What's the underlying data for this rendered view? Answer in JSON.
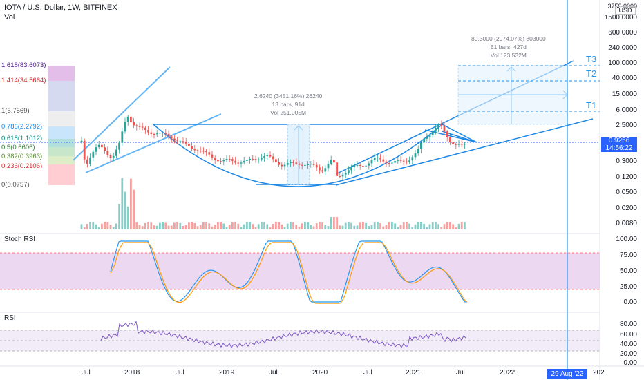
{
  "header": {
    "symbol_line": "IOTA / U.S. Dollar, 1W, BITFINEX",
    "vol_label": "Vol"
  },
  "price_axis": {
    "currency": "USD",
    "ticks": [
      "3750.0000",
      "1500.0000",
      "600.0000",
      "240.0000",
      "100.0000",
      "40.0000",
      "15.0000",
      "6.0000",
      "2.5000",
      "0.9256",
      "0.3000",
      "0.1200",
      "0.0500",
      "0.0200",
      "0.0080"
    ],
    "top_tick": "3750.0000",
    "last_price": "0.9256",
    "countdown": "14:56:22"
  },
  "stoch_rsi": {
    "title": "Stoch RSI",
    "ticks": [
      "100.00",
      "75.00",
      "50.00",
      "25.00",
      "0.00"
    ]
  },
  "rsi": {
    "title": "RSI",
    "ticks": [
      "80.00",
      "60.00",
      "40.00",
      "20.00",
      "0.00"
    ]
  },
  "time_axis": {
    "labels": [
      "Jul",
      "2018",
      "Jul",
      "2019",
      "Jul",
      "2020",
      "Jul",
      "2021",
      "Jul",
      "2022",
      "202"
    ],
    "crosshair_date": "29 Aug '22"
  },
  "fib_levels": [
    {
      "label": "1.618(83.6073)",
      "color": "#4a148c"
    },
    {
      "label": "1.414(34.5664)",
      "color": "#c62828"
    },
    {
      "label": "1(5.7569)",
      "color": "#555555"
    },
    {
      "label": "0.786(2.2792)",
      "color": "#1e88e5"
    },
    {
      "label": "0.618(1.1012)",
      "color": "#00897b"
    },
    {
      "label": "0.5(0.6606)",
      "color": "#2e7d32"
    },
    {
      "label": "0.382(0.3963)",
      "color": "#558b2f"
    },
    {
      "label": "0.236(0.2106)",
      "color": "#d32f2f"
    },
    {
      "label": "0(0.0757)",
      "color": "#555555"
    }
  ],
  "measure_1": {
    "line1": "2.6240 (3451.16%) 26240",
    "line2": "13 bars, 91d",
    "line3": "Vol 251.005M"
  },
  "measure_2": {
    "line1": "80.3000 (2974.07%) 803000",
    "line2": "61 bars, 427d",
    "line3": "Vol 123.532M"
  },
  "targets": [
    "T1",
    "T2",
    "T3"
  ],
  "colors": {
    "accent": "#2962ff",
    "trendline": "#1e88e5",
    "stoch_band": "#e1bee7",
    "rsi_band": "#ede7f6",
    "up": "#26a69a",
    "down": "#ef5350"
  }
}
